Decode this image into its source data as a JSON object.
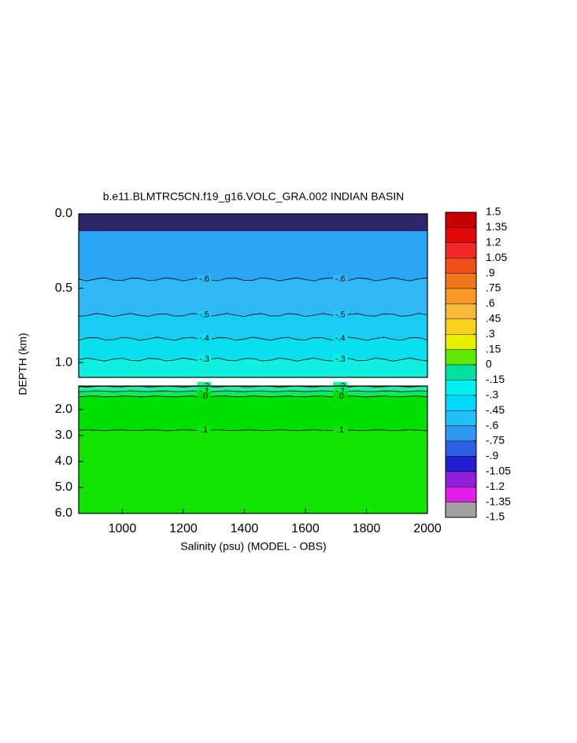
{
  "chart_data": {
    "type": "contour",
    "title": "b.e11.BLMTRC5CN.f19_g16.VOLC_GRA.002 INDIAN BASIN",
    "xlabel": "Salinity (psu) (MODEL - OBS)",
    "ylabel": "DEPTH (km)",
    "xlim": [
      857,
      2000
    ],
    "xticks": [
      1000,
      1200,
      1400,
      1600,
      1800,
      2000
    ],
    "panels": [
      {
        "ylim": [
          0,
          1.1
        ],
        "yticks": [
          {
            "value": 0,
            "label": "0.0"
          },
          {
            "value": 0.5,
            "label": "0.5"
          },
          {
            "value": 1,
            "label": "1.0"
          }
        ],
        "top_color": "#2aa4f4",
        "contours": [
          {
            "level": -0.6,
            "label": "-.6",
            "depth": 0.44,
            "color": "#30b8f4"
          },
          {
            "level": -0.5,
            "label": "-.5",
            "depth": 0.68,
            "color": "#18ccf4"
          },
          {
            "level": -0.4,
            "label": "-.4",
            "depth": 0.84,
            "color": "#08e0f0"
          },
          {
            "level": -0.3,
            "label": "-.3",
            "depth": 0.98,
            "color": "#10f0e0"
          }
        ]
      },
      {
        "ylim": [
          1.1,
          6.0
        ],
        "yticks": [
          {
            "value": 2,
            "label": "2.0"
          },
          {
            "value": 3,
            "label": "3.0"
          },
          {
            "value": 4,
            "label": "4.0"
          },
          {
            "value": 5,
            "label": "5.0"
          },
          {
            "value": 6,
            "label": "6.0"
          }
        ],
        "top_color": "#20f0c8",
        "contours": [
          {
            "level": -0.2,
            "label": "-.2",
            "depth": 1.12,
            "color": "#20f0a0"
          },
          {
            "level": -0.1,
            "label": "-.1",
            "depth": 1.3,
            "color": "#10e860"
          },
          {
            "level": 0,
            "label": ".0",
            "depth": 1.5,
            "color": "#00e000"
          },
          {
            "level": 0.1,
            "label": ".1",
            "depth": 2.8,
            "color": "#10e400"
          }
        ]
      }
    ],
    "colorbar": {
      "ticks": [
        1.5,
        1.35,
        1.2,
        1.05,
        {
          "value": 0.9,
          "label": ".9"
        },
        {
          "value": 0.75,
          "label": ".75"
        },
        {
          "value": 0.6,
          "label": ".6"
        },
        {
          "value": 0.45,
          "label": ".45"
        },
        {
          "value": 0.3,
          "label": ".3"
        },
        {
          "value": 0.15,
          "label": ".15"
        },
        0,
        {
          "value": -0.15,
          "label": "-.15"
        },
        {
          "value": -0.3,
          "label": "-.3"
        },
        {
          "value": -0.45,
          "label": "-.45"
        },
        {
          "value": -0.6,
          "label": "-.6"
        },
        {
          "value": -0.75,
          "label": "-.75"
        },
        {
          "value": -0.9,
          "label": "-.9"
        },
        -1.05,
        -1.2,
        -1.35,
        -1.5
      ],
      "colors": [
        "#c80000",
        "#e00808",
        "#f02828",
        "#f05018",
        "#f07818",
        "#f89828",
        "#f8b838",
        "#f8d020",
        "#e8f000",
        "#60e800",
        "#00e0a0",
        "#00f0f0",
        "#00d8f8",
        "#20c0f8",
        "#3098f0",
        "#2c60e0",
        "#2020d0",
        "#9020d8",
        "#e020e8",
        "#a0a0a0"
      ]
    }
  }
}
